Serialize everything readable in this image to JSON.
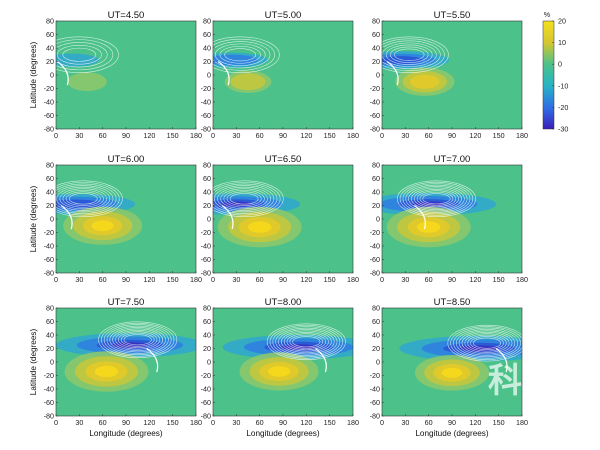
{
  "chart_data": {
    "type": "heatmap",
    "units_label": "%",
    "colorbar": {
      "range": [
        -30,
        20
      ],
      "ticks": [
        "20",
        "10",
        "0",
        "-10",
        "-20",
        "-30"
      ],
      "colors": [
        "#3a1fb8",
        "#2f6fe6",
        "#27b3c4",
        "#4cc28a",
        "#d6c630",
        "#f2e01c"
      ]
    },
    "xlabel": "Longitude (degrees)",
    "ylabel": "Latitude (degrees)",
    "xlim": [
      0,
      180
    ],
    "ylim": [
      -80,
      80
    ],
    "xticks": [
      "0",
      "30",
      "60",
      "90",
      "120",
      "150",
      "180"
    ],
    "yticks": [
      "80",
      "60",
      "40",
      "20",
      "0",
      "-20",
      "-40",
      "-60",
      "-80"
    ],
    "panels": [
      {
        "title": "UT=4.50",
        "neg_peak": -2,
        "neg_lon": 20,
        "neg_lat": 22,
        "pos_peak": 2,
        "pos_lon": 40,
        "pos_lat": -10
      },
      {
        "title": "UT=5.00",
        "neg_peak": -6,
        "neg_lon": 25,
        "neg_lat": 22,
        "pos_peak": 5,
        "pos_lon": 45,
        "pos_lat": -10
      },
      {
        "title": "UT=5.50",
        "neg_peak": -12,
        "neg_lon": 25,
        "neg_lat": 22,
        "pos_peak": 10,
        "pos_lon": 55,
        "pos_lat": -10
      },
      {
        "title": "UT=6.00",
        "neg_peak": -18,
        "neg_lon": 25,
        "neg_lat": 22,
        "pos_peak": 18,
        "pos_lon": 60,
        "pos_lat": -10
      },
      {
        "title": "UT=6.50",
        "neg_peak": -20,
        "neg_lon": 30,
        "neg_lat": 22,
        "pos_peak": 20,
        "pos_lon": 60,
        "pos_lat": -12
      },
      {
        "title": "UT=7.00",
        "neg_peak": -22,
        "neg_lon": 60,
        "neg_lat": 22,
        "pos_peak": 20,
        "pos_lon": 60,
        "pos_lat": -12
      },
      {
        "title": "UT=7.50",
        "neg_peak": -25,
        "neg_lon": 95,
        "neg_lat": 25,
        "pos_peak": 20,
        "pos_lon": 65,
        "pos_lat": -14
      },
      {
        "title": "UT=8.00",
        "neg_peak": -26,
        "neg_lon": 110,
        "neg_lat": 22,
        "pos_peak": 18,
        "pos_lon": 85,
        "pos_lat": -14
      },
      {
        "title": "UT=8.50",
        "neg_peak": -28,
        "neg_lon": 125,
        "neg_lat": 20,
        "pos_peak": 16,
        "pos_lon": 90,
        "pos_lat": -16
      }
    ]
  },
  "watermark": "科"
}
